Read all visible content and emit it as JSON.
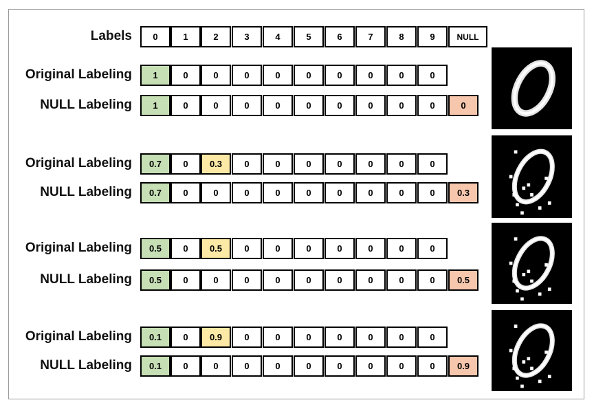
{
  "header": {
    "title": "Labels",
    "labels": [
      "0",
      "1",
      "2",
      "3",
      "4",
      "5",
      "6",
      "7",
      "8",
      "9",
      "NULL"
    ]
  },
  "groups": [
    {
      "original": {
        "label": "Original Labeling",
        "values": [
          "1",
          "0",
          "0",
          "0",
          "0",
          "0",
          "0",
          "0",
          "0",
          "0"
        ]
      },
      "null": {
        "label": "NULL Labeling",
        "values": [
          "1",
          "0",
          "0",
          "0",
          "0",
          "0",
          "0",
          "0",
          "0",
          "0",
          "0"
        ]
      },
      "image_icon": "handwritten-zero-clean"
    },
    {
      "original": {
        "label": "Original Labeling",
        "values": [
          "0.7",
          "0",
          "0.3",
          "0",
          "0",
          "0",
          "0",
          "0",
          "0",
          "0"
        ]
      },
      "null": {
        "label": "NULL Labeling",
        "values": [
          "0.7",
          "0",
          "0",
          "0",
          "0",
          "0",
          "0",
          "0",
          "0",
          "0",
          "0.3"
        ]
      },
      "image_icon": "handwritten-zero-perturbed"
    },
    {
      "original": {
        "label": "Original Labeling",
        "values": [
          "0.5",
          "0",
          "0.5",
          "0",
          "0",
          "0",
          "0",
          "0",
          "0",
          "0"
        ]
      },
      "null": {
        "label": "NULL Labeling",
        "values": [
          "0.5",
          "0",
          "0",
          "0",
          "0",
          "0",
          "0",
          "0",
          "0",
          "0",
          "0.5"
        ]
      },
      "image_icon": "handwritten-zero-perturbed"
    },
    {
      "original": {
        "label": "Original Labeling",
        "values": [
          "0.1",
          "0",
          "0.9",
          "0",
          "0",
          "0",
          "0",
          "0",
          "0",
          "0"
        ]
      },
      "null": {
        "label": "NULL Labeling",
        "values": [
          "0.1",
          "0",
          "0",
          "0",
          "0",
          "0",
          "0",
          "0",
          "0",
          "0",
          "0.9"
        ]
      },
      "image_icon": "handwritten-zero-perturbed"
    }
  ],
  "colors": {
    "true_class": "#c7dfb5",
    "adversarial_class": "#fde9a6",
    "null_class": "#f7c7ad",
    "cell_border": "#000000"
  }
}
